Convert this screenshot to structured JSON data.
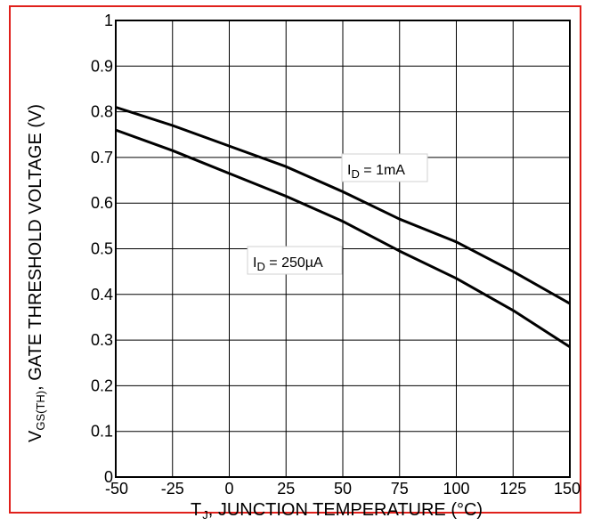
{
  "colors": {
    "frame": "#e0201b",
    "grid": "#000000",
    "line": "#000000",
    "background": "#ffffff"
  },
  "chart_data": {
    "type": "line",
    "title": "",
    "xlabel": "T , JUNCTION TEMPERATURE (°C)",
    "xlabel_parts": {
      "symbol": "T",
      "subscript": "J",
      "rest": ", JUNCTION TEMPERATURE (°C)"
    },
    "ylabel": "VGS(TH), GATE THRESHOLD VOLTAGE (V)",
    "ylabel_parts": {
      "symbol": "V",
      "subscript": "GS(TH)",
      "rest": ", GATE THRESHOLD VOLTAGE (V)"
    },
    "xlim": [
      -50,
      150
    ],
    "ylim": [
      0,
      1
    ],
    "xticks": [
      "-50",
      "-25",
      "0",
      "25",
      "50",
      "75",
      "100",
      "125",
      "150"
    ],
    "yticks": [
      "0",
      "0.1",
      "0.2",
      "0.3",
      "0.4",
      "0.5",
      "0.6",
      "0.7",
      "0.8",
      "0.9",
      "1"
    ],
    "grid": true,
    "series": [
      {
        "name": "ID = 1mA",
        "label_parts": {
          "symbol": "I",
          "subscript": "D",
          "rest": " = 1mA"
        },
        "x": [
          -50,
          -25,
          0,
          25,
          50,
          75,
          100,
          125,
          150
        ],
        "y": [
          0.81,
          0.77,
          0.725,
          0.68,
          0.625,
          0.565,
          0.515,
          0.45,
          0.38
        ]
      },
      {
        "name": "ID = 250µA",
        "label_parts": {
          "symbol": "I",
          "subscript": "D",
          "rest": " = 250µA"
        },
        "x": [
          -50,
          -25,
          0,
          25,
          50,
          75,
          100,
          125,
          150
        ],
        "y": [
          0.76,
          0.715,
          0.665,
          0.615,
          0.56,
          0.495,
          0.435,
          0.365,
          0.285
        ]
      }
    ]
  }
}
